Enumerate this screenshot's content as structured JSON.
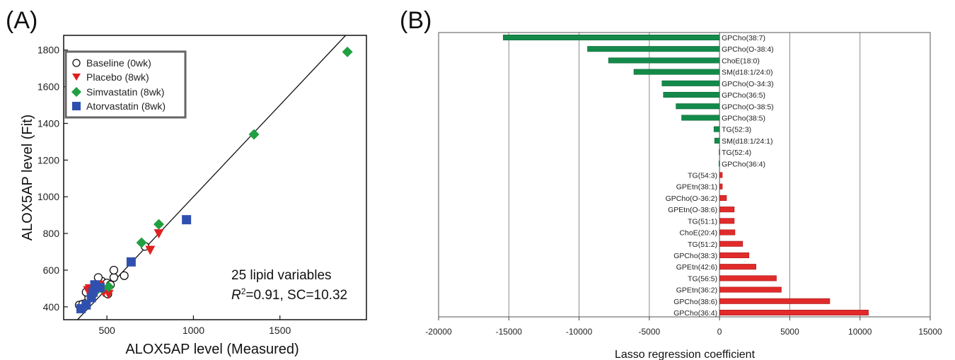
{
  "panels": {
    "a_label": "(A)",
    "b_label": "(B)"
  },
  "chart_data": [
    {
      "type": "scatter",
      "xlabel": "ALOX5AP level (Measured)",
      "ylabel": "ALOX5AP level (Fit)",
      "xlim": [
        250,
        2000
      ],
      "ylim": [
        330,
        1880
      ],
      "xticks": [
        500,
        1000,
        1500
      ],
      "yticks": [
        400,
        600,
        800,
        1000,
        1200,
        1400,
        1600,
        1800
      ],
      "grid": false,
      "legend_position": "top-left",
      "reference_line": "y = x",
      "annotation_line1": "25 lipid variables",
      "annotation_r": "R",
      "annotation_sup": "2",
      "annotation_rest": "=0.91, SC=10.32",
      "series": [
        {
          "name": "Baseline (0wk)",
          "marker": "circle-open",
          "color": "#111111",
          "points": [
            [
              340,
              410
            ],
            [
              360,
              415
            ],
            [
              380,
              420
            ],
            [
              395,
              450
            ],
            [
              420,
              470
            ],
            [
              380,
              480
            ],
            [
              410,
              500
            ],
            [
              450,
              520
            ],
            [
              480,
              500
            ],
            [
              470,
              540
            ],
            [
              500,
              530
            ],
            [
              520,
              520
            ],
            [
              540,
              560
            ],
            [
              450,
              560
            ],
            [
              540,
              600
            ],
            [
              600,
              570
            ],
            [
              720,
              730
            ],
            [
              505,
              470
            ],
            [
              430,
              490
            ]
          ]
        },
        {
          "name": "Placebo (8wk)",
          "marker": "triangle-down",
          "color": "#e02020",
          "points": [
            [
              400,
              500
            ],
            [
              420,
              470
            ],
            [
              450,
              520
            ],
            [
              460,
              510
            ],
            [
              480,
              480
            ],
            [
              510,
              470
            ],
            [
              750,
              710
            ],
            [
              800,
              800
            ],
            [
              390,
              490
            ]
          ]
        },
        {
          "name": "Simvastatin (8wk)",
          "marker": "diamond",
          "color": "#20a040",
          "points": [
            [
              1890,
              1790
            ],
            [
              1350,
              1340
            ],
            [
              800,
              850
            ],
            [
              700,
              750
            ],
            [
              510,
              510
            ],
            [
              470,
              500
            ],
            [
              440,
              490
            ]
          ]
        },
        {
          "name": "Atorvastatin (8wk)",
          "marker": "square",
          "color": "#3050b0",
          "points": [
            [
              960,
              875
            ],
            [
              640,
              645
            ],
            [
              410,
              450
            ],
            [
              420,
              480
            ],
            [
              430,
              520
            ],
            [
              350,
              390
            ],
            [
              460,
              505
            ],
            [
              380,
              410
            ]
          ]
        }
      ]
    },
    {
      "type": "bar",
      "orientation": "horizontal",
      "xlabel": "Lasso regression coefficient",
      "xlim": [
        -20000,
        15000
      ],
      "xticks": [
        -20000,
        -15000,
        -10000,
        -5000,
        0,
        5000,
        10000,
        15000
      ],
      "grid": true,
      "colors": {
        "negative": "#138a4a",
        "positive": "#e12b2b"
      },
      "categories": [
        "GPCho(38:7)",
        "GPCho(O-38:4)",
        "ChoE(18:0)",
        "SM(d18:1/24:0)",
        "GPCho(O-34:3)",
        "GPCho(36:5)",
        "GPCho(O-38:5)",
        "GPCho(38:5)",
        "TG(52:3)",
        "SM(d18:1/24:1)",
        "TG(52:4)",
        "GPCho(36:4)",
        "TG(54:3)",
        "GPEtn(38:1)",
        "GPCho(O-36:2)",
        "GPEtn(O-38:6)",
        "TG(51:1)",
        "ChoE(20:4)",
        "TG(51:2)",
        "GPCho(38:3)",
        "GPEtn(42:6)",
        "TG(56:5)",
        "GPEtn(36:2)",
        "GPCho(38:6)",
        "GPCho(36:4)"
      ],
      "values": [
        -15400,
        -9400,
        -7900,
        -6100,
        -4100,
        -4000,
        -3100,
        -2700,
        -400,
        -350,
        -30,
        -40,
        200,
        200,
        500,
        1050,
        1050,
        1100,
        1650,
        2100,
        2600,
        4050,
        4400,
        7850,
        10600
      ]
    }
  ]
}
